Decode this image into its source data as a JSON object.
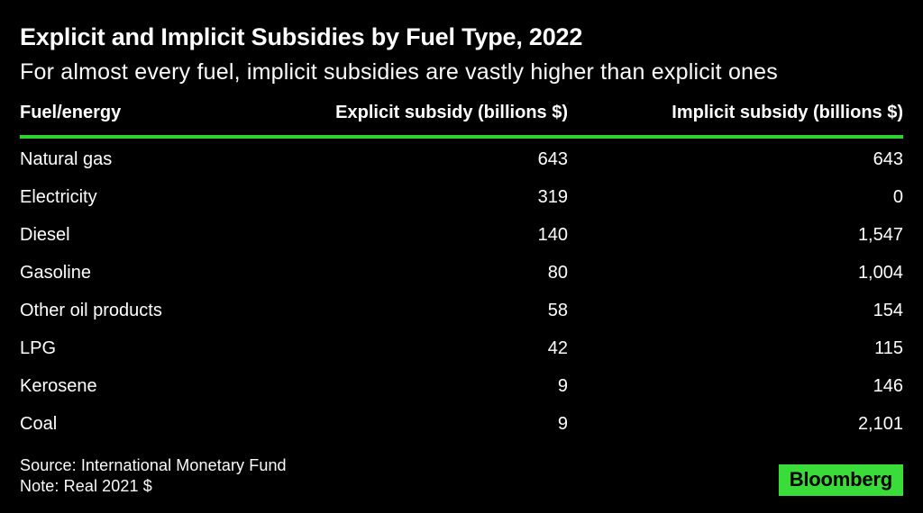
{
  "header": {
    "title": "Explicit and Implicit Subsidies by Fuel Type, 2022",
    "subtitle": "For almost every fuel, implicit subsidies are vastly higher than explicit ones"
  },
  "chart_data": {
    "type": "table",
    "title": "Explicit and Implicit Subsidies by Fuel Type, 2022",
    "subtitle": "For almost every fuel, implicit subsidies are vastly higher than explicit ones",
    "columns": [
      "Fuel/energy",
      "Explicit subsidy (billions $)",
      "Implicit subsidy (billions $)"
    ],
    "rows": [
      {
        "fuel": "Natural gas",
        "explicit": "643",
        "implicit": "643"
      },
      {
        "fuel": "Electricity",
        "explicit": "319",
        "implicit": "0"
      },
      {
        "fuel": "Diesel",
        "explicit": "140",
        "implicit": "1,547"
      },
      {
        "fuel": "Gasoline",
        "explicit": "80",
        "implicit": "1,004"
      },
      {
        "fuel": "Other oil products",
        "explicit": "58",
        "implicit": "154"
      },
      {
        "fuel": "LPG",
        "explicit": "42",
        "implicit": "115"
      },
      {
        "fuel": "Kerosene",
        "explicit": "9",
        "implicit": "146"
      },
      {
        "fuel": "Coal",
        "explicit": "9",
        "implicit": "2,101"
      }
    ],
    "units": "billions of real 2021 US dollars"
  },
  "footer": {
    "source": "Source: International Monetary Fund",
    "note": "Note: Real 2021 $",
    "brand": "Bloomberg"
  },
  "colors": {
    "background": "#000000",
    "text": "#ffffff",
    "accent_rule_green": "#2dd22d",
    "logo_green": "#39dc39"
  }
}
